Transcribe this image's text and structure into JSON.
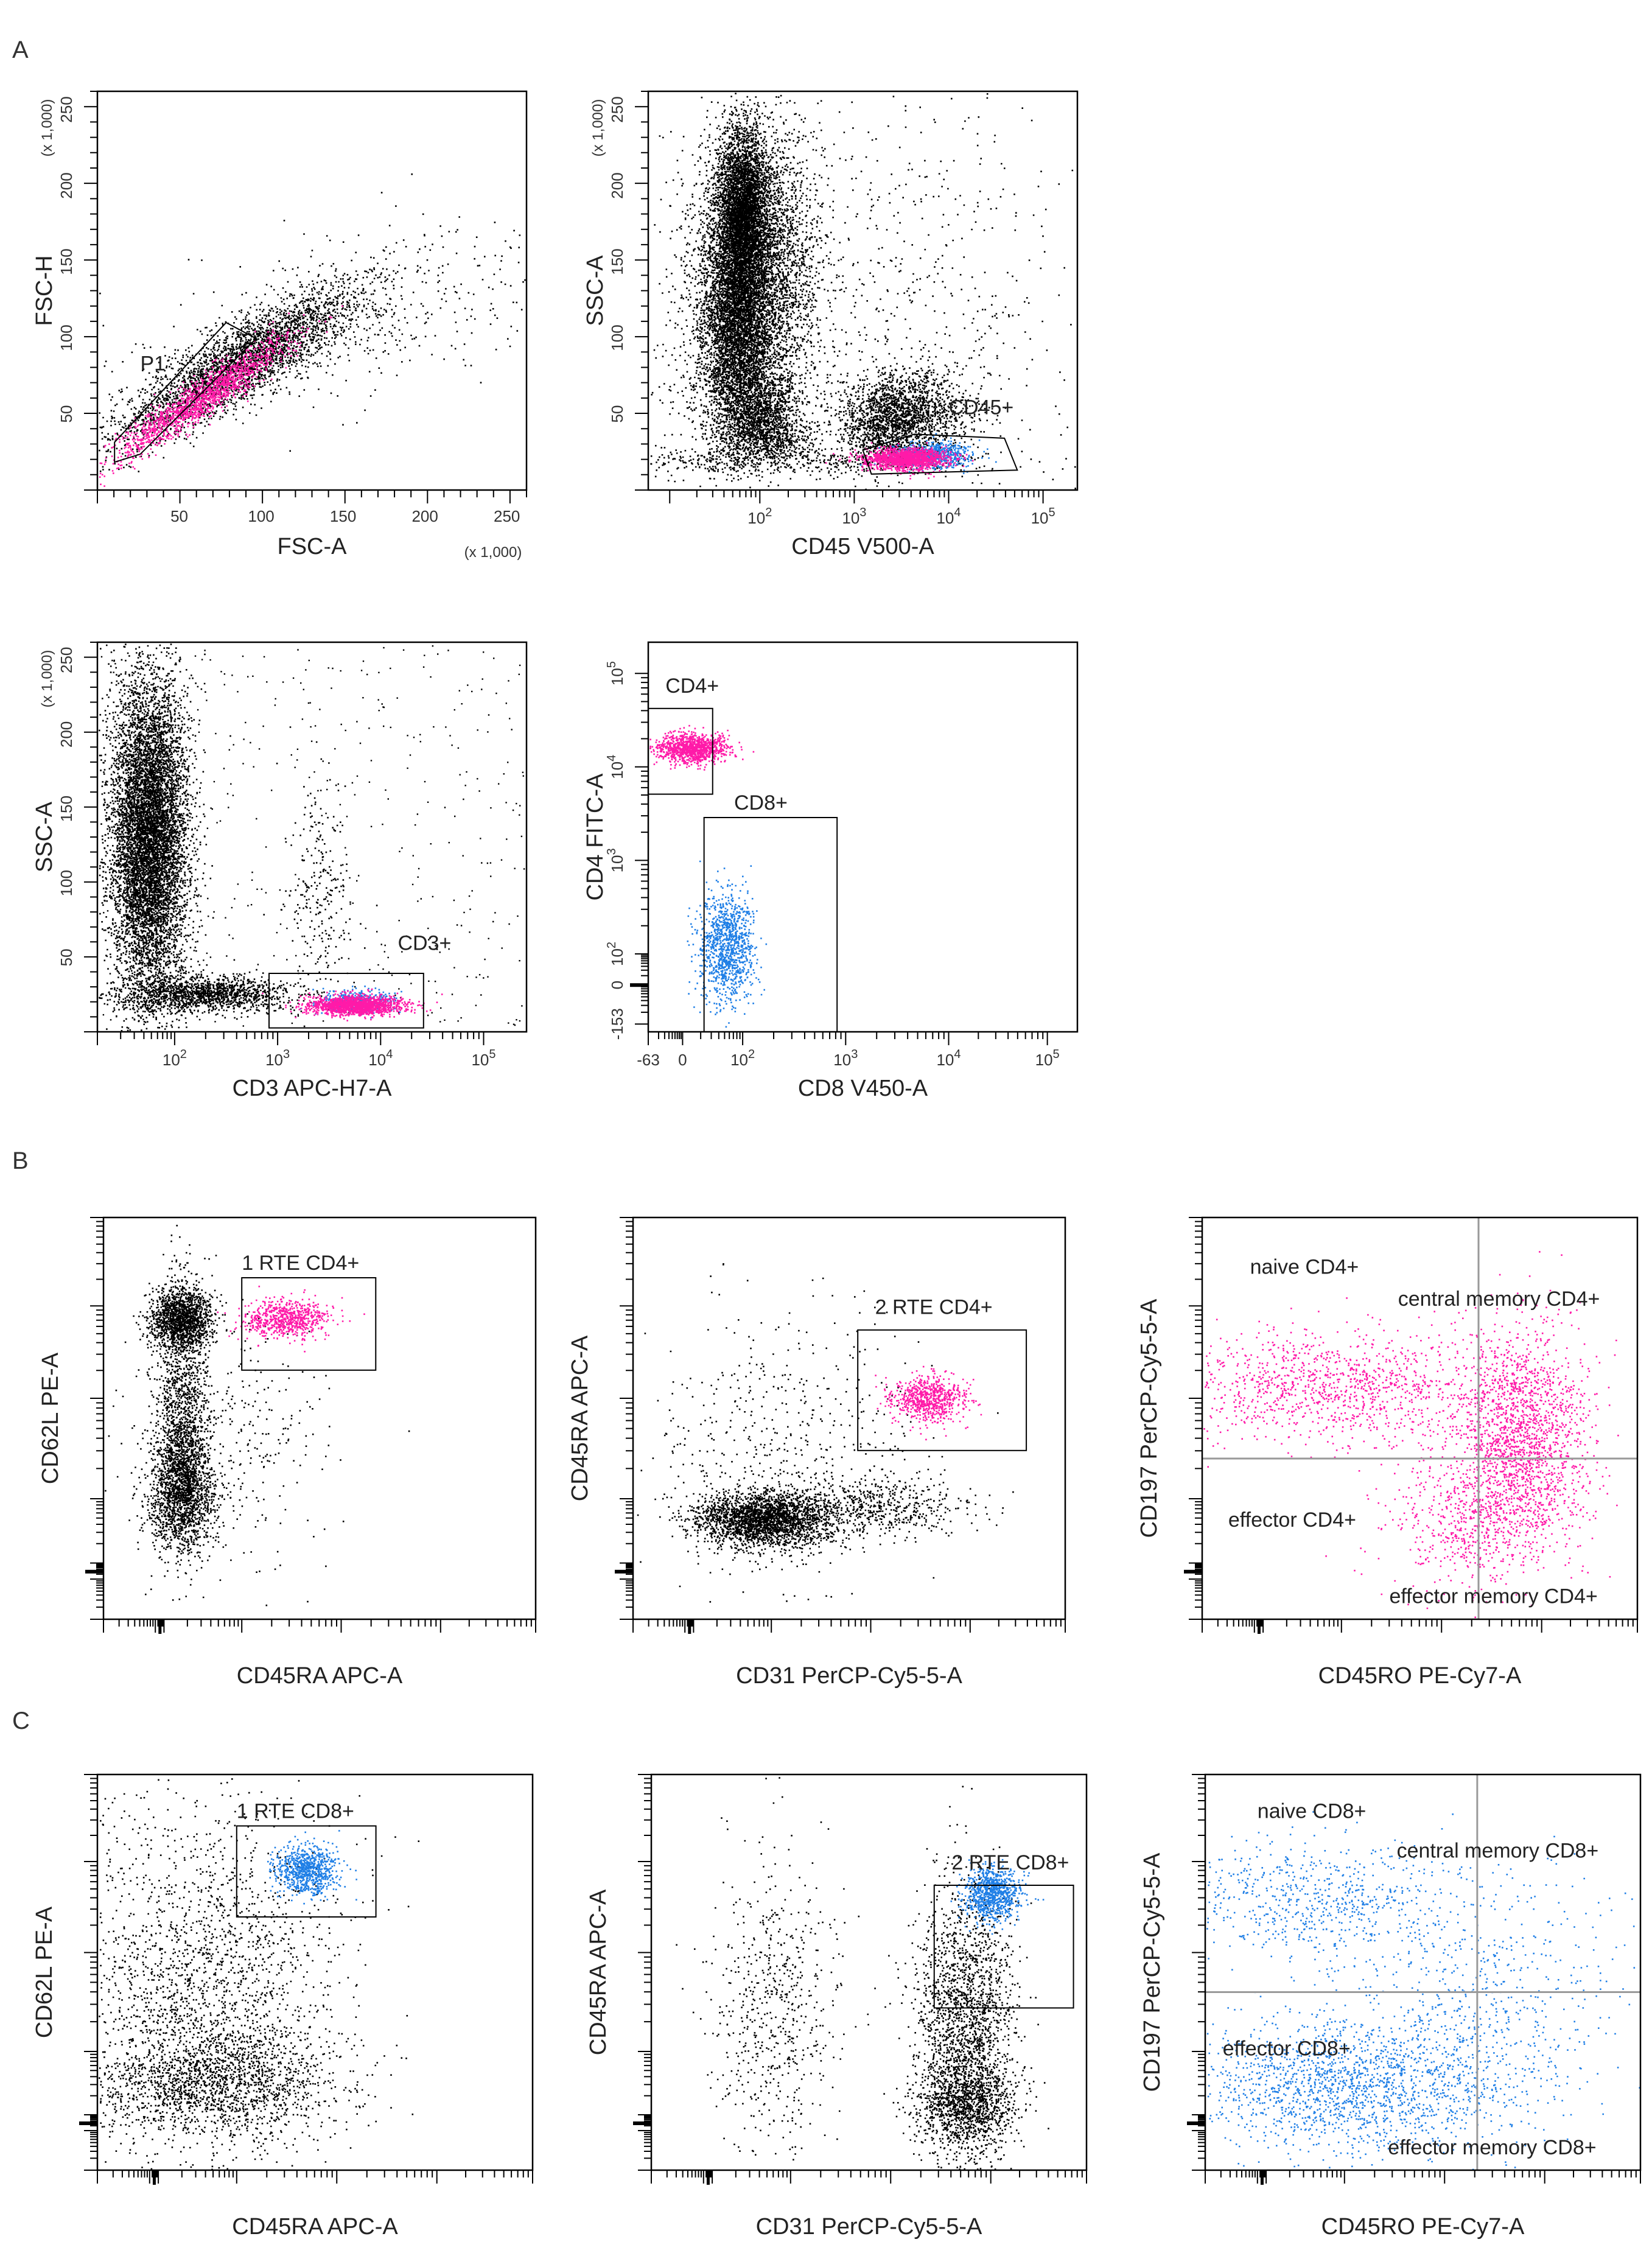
{
  "colors": {
    "black": "#000000",
    "magenta": "#ff1aa8",
    "blue": "#1f7fe6",
    "frame": "#000000",
    "quadrant": "#9a9a9a"
  },
  "sections": [
    "A",
    "B",
    "C"
  ],
  "chart_data": [
    {
      "type": "scatter",
      "id": "A1",
      "section": "A",
      "xlabel": "FSC-A",
      "ylabel": "FSC-H",
      "x_multiplier": "(x 1,000)",
      "y_multiplier": "(x 1,000)",
      "xlim": [
        0,
        262
      ],
      "ylim": [
        0,
        262
      ],
      "xticks": [
        "50",
        "100",
        "150",
        "200",
        "250"
      ],
      "yticks": [
        "50",
        "100",
        "150",
        "200",
        "250"
      ],
      "gates": [
        {
          "label": "P1",
          "shape": "polygon"
        }
      ],
      "populations": [
        {
          "color": "black",
          "center": [
            95,
            65
          ],
          "spread": "diagonal-band"
        },
        {
          "color": "magenta",
          "center": [
            70,
            50
          ],
          "spread": "diagonal-band"
        }
      ]
    },
    {
      "type": "scatter",
      "id": "A2",
      "section": "A",
      "xlabel": "CD45 V500-A",
      "ylabel": "SSC-A",
      "y_multiplier": "(x 1,000)",
      "xscale": "log",
      "xlim": [
        40,
        200000
      ],
      "ylim": [
        0,
        262
      ],
      "xticks": [
        "10^2",
        "10^3",
        "10^4",
        "10^5"
      ],
      "yticks": [
        "50",
        "100",
        "150",
        "200",
        "250"
      ],
      "gates": [
        {
          "label": "CD45+",
          "shape": "polygon"
        }
      ],
      "populations": [
        {
          "color": "black",
          "center": [
            2500,
            120
          ],
          "note": "granulocytes"
        },
        {
          "color": "black",
          "center": [
            9000,
            35
          ],
          "note": "monocytes"
        },
        {
          "color": "magenta",
          "center": [
            9000,
            18
          ]
        },
        {
          "color": "blue",
          "center": [
            11000,
            18
          ]
        }
      ]
    },
    {
      "type": "scatter",
      "id": "A3",
      "section": "A",
      "xlabel": "CD3 APC-H7-A",
      "ylabel": "SSC-A",
      "y_multiplier": "(x 1,000)",
      "xscale": "log",
      "xlim": [
        30,
        200000
      ],
      "ylim": [
        0,
        262
      ],
      "xticks": [
        "10^2",
        "10^3",
        "10^4",
        "10^5"
      ],
      "yticks": [
        "50",
        "100",
        "150",
        "200",
        "250"
      ],
      "gates": [
        {
          "label": "CD3+",
          "shape": "rect",
          "x": [
            1200,
            30000
          ],
          "y": [
            5,
            38
          ]
        }
      ],
      "populations": [
        {
          "color": "black",
          "center": [
            90,
            100
          ]
        },
        {
          "color": "magenta",
          "center": [
            5000,
            18
          ]
        },
        {
          "color": "blue",
          "center": [
            4500,
            20
          ]
        }
      ]
    },
    {
      "type": "scatter",
      "id": "A4",
      "section": "A",
      "xlabel": "CD8 V450-A",
      "ylabel": "CD4 FITC-A",
      "xscale": "biexponential",
      "yscale": "biexponential",
      "xticks": [
        "-63",
        "0",
        "10^2",
        "10^3",
        "10^4",
        "10^5"
      ],
      "yticks": [
        "-153",
        "0",
        "10^2",
        "10^3",
        "10^4",
        "10^5"
      ],
      "gates": [
        {
          "label": "CD4+",
          "shape": "rect"
        },
        {
          "label": "CD8+",
          "shape": "rect"
        }
      ],
      "populations": [
        {
          "color": "magenta",
          "center": [
            40,
            6000
          ]
        },
        {
          "color": "blue",
          "center": [
            500,
            80
          ]
        }
      ]
    },
    {
      "type": "scatter",
      "id": "B1",
      "section": "B",
      "xlabel": "CD45RA APC-A",
      "ylabel": "CD62L PE-A",
      "gates": [
        {
          "label": "1 RTE CD4+",
          "shape": "rect"
        }
      ],
      "populations": [
        {
          "color": "black"
        },
        {
          "color": "magenta"
        }
      ]
    },
    {
      "type": "scatter",
      "id": "B2",
      "section": "B",
      "xlabel": "CD31 PerCP-Cy5-5-A",
      "ylabel": "CD45RA APC-A",
      "gates": [
        {
          "label": "2 RTE CD4+",
          "shape": "rect"
        }
      ],
      "populations": [
        {
          "color": "black"
        },
        {
          "color": "magenta"
        }
      ]
    },
    {
      "type": "scatter",
      "id": "B3",
      "section": "B",
      "xlabel": "CD45RO PE-Cy7-A",
      "ylabel": "CD197 PerCP-Cy5-5-A",
      "quadrants": [
        "naive CD4+",
        "central memory CD4+",
        "effector CD4+",
        "effector memory CD4+"
      ],
      "populations": [
        {
          "color": "magenta"
        }
      ]
    },
    {
      "type": "scatter",
      "id": "C1",
      "section": "C",
      "xlabel": "CD45RA APC-A",
      "ylabel": "CD62L PE-A",
      "gates": [
        {
          "label": "1 RTE CD8+",
          "shape": "rect"
        }
      ],
      "populations": [
        {
          "color": "black"
        },
        {
          "color": "blue"
        }
      ]
    },
    {
      "type": "scatter",
      "id": "C2",
      "section": "C",
      "xlabel": "CD31 PerCP-Cy5-5-A",
      "ylabel": "CD45RA APC-A",
      "gates": [
        {
          "label": "2 RTE CD8+",
          "shape": "rect"
        }
      ],
      "populations": [
        {
          "color": "black"
        },
        {
          "color": "blue"
        }
      ]
    },
    {
      "type": "scatter",
      "id": "C3",
      "section": "C",
      "xlabel": "CD45RO PE-Cy7-A",
      "ylabel": "CD197 PerCP-Cy5-5-A",
      "quadrants": [
        "naive CD8+",
        "central memory CD8+",
        "effector CD8+",
        "effector memory CD8+"
      ],
      "populations": [
        {
          "color": "blue"
        }
      ]
    }
  ]
}
